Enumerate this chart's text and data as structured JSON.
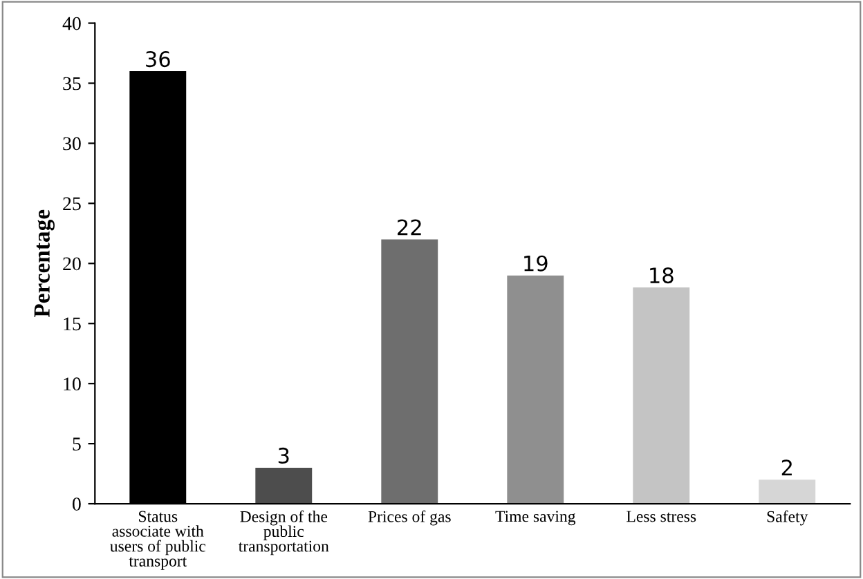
{
  "chart_data": {
    "type": "bar",
    "ylabel": "Percentage",
    "categories": [
      "Status\nassociate with\nusers of public\ntransport",
      "Design of the\npublic\ntransportation",
      "Prices of gas",
      "Time saving",
      "Less stress",
      "Safety"
    ],
    "values": [
      36,
      3,
      22,
      19,
      18,
      2
    ],
    "colors": [
      "#000000",
      "#4d4d4d",
      "#6e6e6e",
      "#8f8f8f",
      "#c4c4c4",
      "#d6d6d6"
    ],
    "ylim": [
      0,
      40
    ],
    "yticks": [
      0,
      5,
      10,
      15,
      20,
      25,
      30,
      35,
      40
    ],
    "grid": false,
    "data_labels": true
  }
}
